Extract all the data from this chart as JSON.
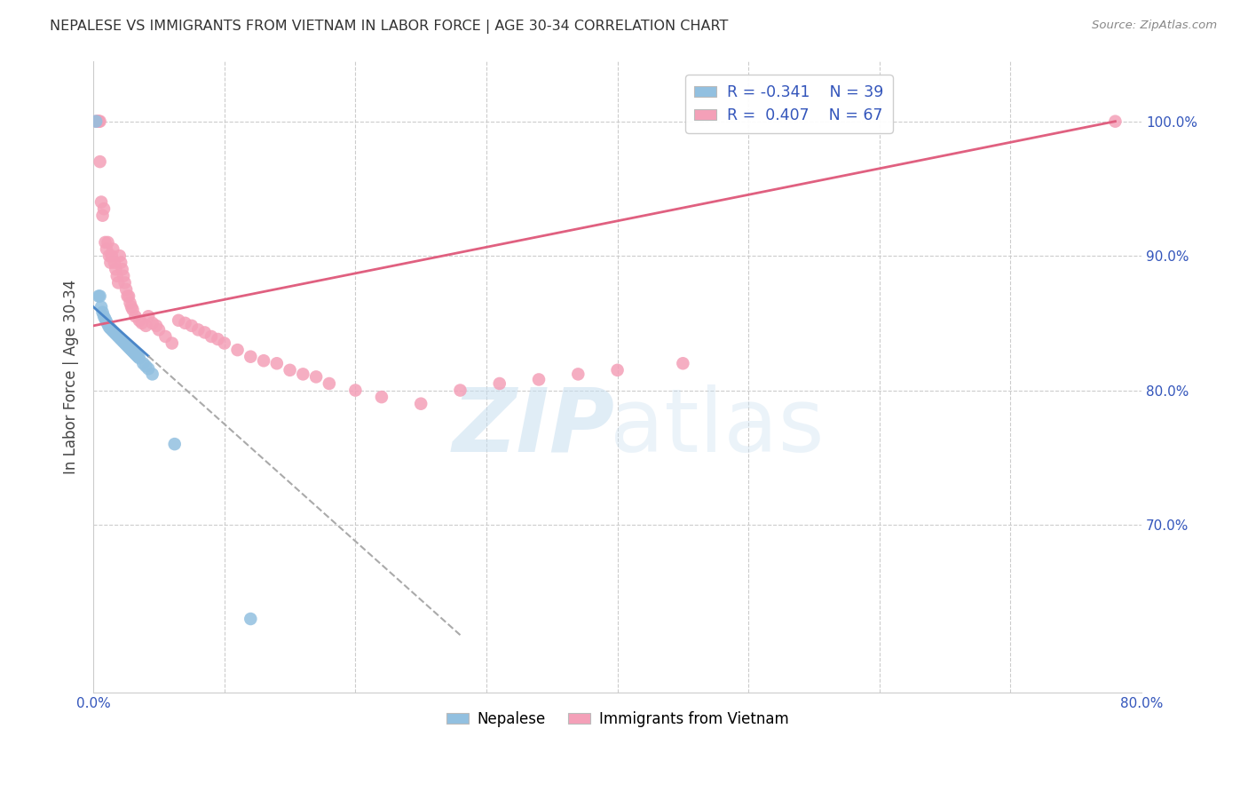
{
  "title": "NEPALESE VS IMMIGRANTS FROM VIETNAM IN LABOR FORCE | AGE 30-34 CORRELATION CHART",
  "source": "Source: ZipAtlas.com",
  "ylabel": "In Labor Force | Age 30-34",
  "xmin": 0.0,
  "xmax": 0.8,
  "ymin": 0.575,
  "ymax": 1.045,
  "color_blue": "#92c0e0",
  "color_pink": "#f4a0b8",
  "color_blue_line": "#4a86c8",
  "color_pink_line": "#e06080",
  "color_blue_text": "#3355bb",
  "color_gray_text": "#888888",
  "color_grid": "#cccccc",
  "nepalese_x": [
    0.002,
    0.004,
    0.005,
    0.006,
    0.007,
    0.008,
    0.009,
    0.01,
    0.011,
    0.012,
    0.013,
    0.014,
    0.015,
    0.016,
    0.017,
    0.018,
    0.019,
    0.02,
    0.021,
    0.022,
    0.023,
    0.024,
    0.025,
    0.026,
    0.027,
    0.028,
    0.029,
    0.03,
    0.031,
    0.032,
    0.033,
    0.034,
    0.035,
    0.038,
    0.04,
    0.042,
    0.045,
    0.12,
    0.062
  ],
  "nepalese_y": [
    1.0,
    0.87,
    0.87,
    0.862,
    0.858,
    0.855,
    0.853,
    0.851,
    0.849,
    0.847,
    0.846,
    0.845,
    0.844,
    0.843,
    0.842,
    0.841,
    0.84,
    0.839,
    0.838,
    0.837,
    0.836,
    0.835,
    0.834,
    0.833,
    0.832,
    0.831,
    0.83,
    0.829,
    0.828,
    0.827,
    0.826,
    0.825,
    0.824,
    0.82,
    0.818,
    0.816,
    0.812,
    0.63,
    0.76
  ],
  "vietnam_x": [
    0.002,
    0.003,
    0.004,
    0.004,
    0.005,
    0.005,
    0.006,
    0.007,
    0.008,
    0.009,
    0.01,
    0.011,
    0.012,
    0.013,
    0.014,
    0.015,
    0.016,
    0.017,
    0.018,
    0.019,
    0.02,
    0.021,
    0.022,
    0.023,
    0.024,
    0.025,
    0.026,
    0.027,
    0.028,
    0.029,
    0.03,
    0.032,
    0.035,
    0.037,
    0.04,
    0.042,
    0.045,
    0.048,
    0.05,
    0.055,
    0.06,
    0.065,
    0.07,
    0.075,
    0.08,
    0.085,
    0.09,
    0.095,
    0.1,
    0.11,
    0.12,
    0.13,
    0.14,
    0.15,
    0.16,
    0.17,
    0.18,
    0.2,
    0.22,
    0.25,
    0.28,
    0.31,
    0.34,
    0.37,
    0.4,
    0.45,
    0.78
  ],
  "vietnam_y": [
    1.0,
    1.0,
    1.0,
    1.0,
    1.0,
    0.97,
    0.94,
    0.93,
    0.935,
    0.91,
    0.905,
    0.91,
    0.9,
    0.895,
    0.9,
    0.905,
    0.895,
    0.89,
    0.885,
    0.88,
    0.9,
    0.895,
    0.89,
    0.885,
    0.88,
    0.875,
    0.87,
    0.87,
    0.865,
    0.862,
    0.86,
    0.855,
    0.852,
    0.85,
    0.848,
    0.855,
    0.85,
    0.848,
    0.845,
    0.84,
    0.835,
    0.852,
    0.85,
    0.848,
    0.845,
    0.843,
    0.84,
    0.838,
    0.835,
    0.83,
    0.825,
    0.822,
    0.82,
    0.815,
    0.812,
    0.81,
    0.805,
    0.8,
    0.795,
    0.79,
    0.8,
    0.805,
    0.808,
    0.812,
    0.815,
    0.82,
    1.0
  ],
  "nep_line_x0": 0.0,
  "nep_line_y0": 0.862,
  "nep_line_x1": 0.14,
  "nep_line_y1": 0.74,
  "nep_line_solid_end": 0.042,
  "nep_line_dash_end": 0.28,
  "viet_line_x0": 0.0,
  "viet_line_y0": 0.848,
  "viet_line_x1": 0.78,
  "viet_line_y1": 1.0
}
